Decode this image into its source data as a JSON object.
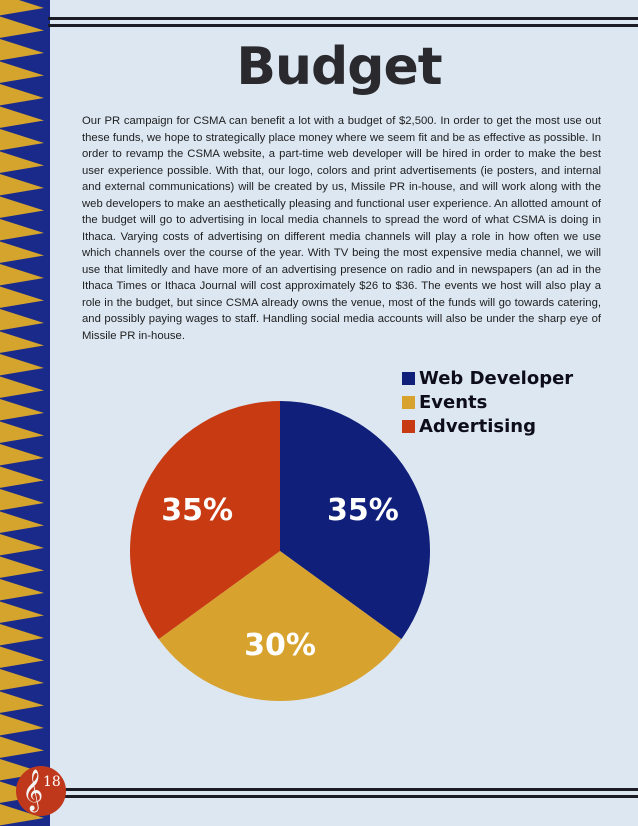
{
  "page": {
    "title": "Budget",
    "page_number": "18",
    "body_text": "Our PR campaign for CSMA can benefit a lot with a budget of $2,500. In order to get the most use out these funds, we hope to strategically place money where we seem fit and be as effective as possible. In order to revamp the CSMA website, a part-time web developer will be hired in order to make the best user experience possible. With that, our logo, colors and print advertisements (ie posters, and internal and external communications) will be created by us, Missile PR in-house, and will work along with the web developers to make an aesthetically pleasing and functional user experience. An allotted amount of the budget will go to advertising in local media channels to spread the word of what CSMA is doing in Ithaca. Varying costs of advertising on different media channels will play a role in how often we use which channels over the course of the year. With TV being the most expensive media channel, we will use that limitedly and have more of an advertising presence on radio and in newspapers (an ad in the Ithaca Times or Ithaca Journal will cost approximately $26 to $36. The events we host will also play a role in the budget, but since CSMA already owns the venue, most of the funds will go towards catering, and possibly paying wages to staff. Handling social media accounts will also be under the sharp eye of Missile PR in-house."
  },
  "decor": {
    "border_colors": [
      "#1a2a8a",
      "#d4a42c"
    ],
    "badge_icon": "treble-clef-icon"
  },
  "chart_data": {
    "type": "pie",
    "title": "",
    "legend_position": "top-right",
    "slices": [
      {
        "label": "Web Developer",
        "value": 35,
        "display": "35%",
        "color": "#0f1f7a"
      },
      {
        "label": "Events",
        "value": 30,
        "display": "30%",
        "color": "#d8a22e"
      },
      {
        "label": "Advertising",
        "value": 35,
        "display": "35%",
        "color": "#c73a12"
      }
    ]
  }
}
